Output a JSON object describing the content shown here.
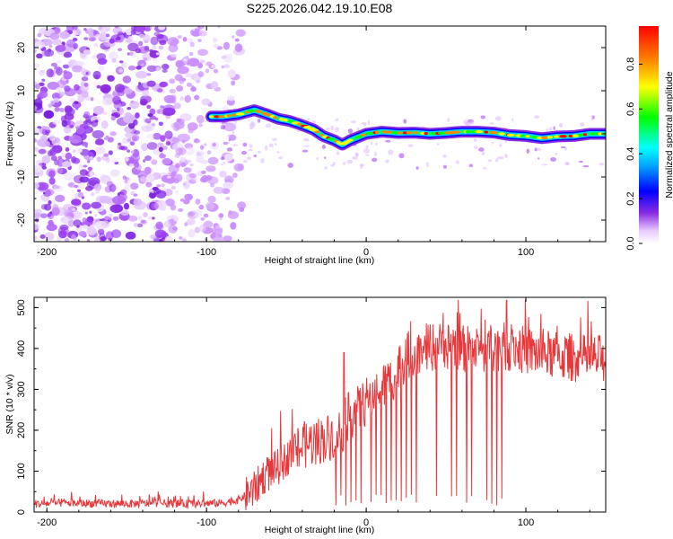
{
  "chart_data": [
    {
      "type": "heatmap",
      "title": "S225.2026.042.19.10.E08",
      "xlabel": "Height of straight line (km)",
      "ylabel": "Frequency (Hz)",
      "xlim": [
        -208,
        150
      ],
      "ylim": [
        -25,
        25
      ],
      "xticks": [
        -200,
        -100,
        0,
        100
      ],
      "yticks": [
        -20,
        -10,
        0,
        10,
        20
      ],
      "colorbar": {
        "label": "Normalized spectral amplitude",
        "range": [
          0.0,
          0.97
        ],
        "ticks": [
          0.0,
          0.2,
          0.4,
          0.6,
          0.8
        ]
      },
      "trace": {
        "description": "frequency ridge of the signal",
        "x": [
          -97,
          -90,
          -80,
          -70,
          -62,
          -55,
          -48,
          -40,
          -33,
          -27,
          -20,
          -15,
          -10,
          0,
          10,
          20,
          30,
          40,
          50,
          60,
          70,
          80,
          90,
          100,
          110,
          120,
          130,
          140,
          150
        ],
        "y": [
          4,
          4,
          4.5,
          5.5,
          4.5,
          3.5,
          3,
          2,
          1,
          -0.5,
          -1.5,
          -2.5,
          -1.5,
          0,
          0.5,
          0.2,
          0.3,
          0,
          0.2,
          0.5,
          0.5,
          0.3,
          -0.3,
          -0.5,
          -1,
          -0.6,
          -0.5,
          0,
          0
        ]
      },
      "noise_region_x": [
        -208,
        -78
      ]
    },
    {
      "type": "line",
      "xlabel": "Height of straight line (km)",
      "ylabel": "SNR (10 * v/v)",
      "xlim": [
        -208,
        150
      ],
      "ylim": [
        0,
        525
      ],
      "xticks": [
        -200,
        -100,
        0,
        100
      ],
      "yticks": [
        0,
        100,
        200,
        300,
        400,
        500
      ],
      "series": [
        {
          "name": "SNR",
          "color": "#e8373a",
          "x": [
            -208,
            -190,
            -170,
            -150,
            -130,
            -110,
            -90,
            -80,
            -70,
            -65,
            -55,
            -45,
            -35,
            -25,
            -15,
            -12,
            -5,
            5,
            15,
            25,
            35,
            45,
            55,
            65,
            75,
            85,
            95,
            105,
            115,
            125,
            135,
            150
          ],
          "y": [
            20,
            22,
            21,
            20,
            22,
            20,
            22,
            30,
            55,
            85,
            110,
            150,
            170,
            180,
            200,
            230,
            250,
            290,
            320,
            380,
            400,
            405,
            410,
            395,
            400,
            405,
            400,
            390,
            385,
            380,
            375,
            375
          ]
        }
      ],
      "dropout_spikes": "deep periodic drops toward 20 between x = -20 and x = 85"
    }
  ]
}
